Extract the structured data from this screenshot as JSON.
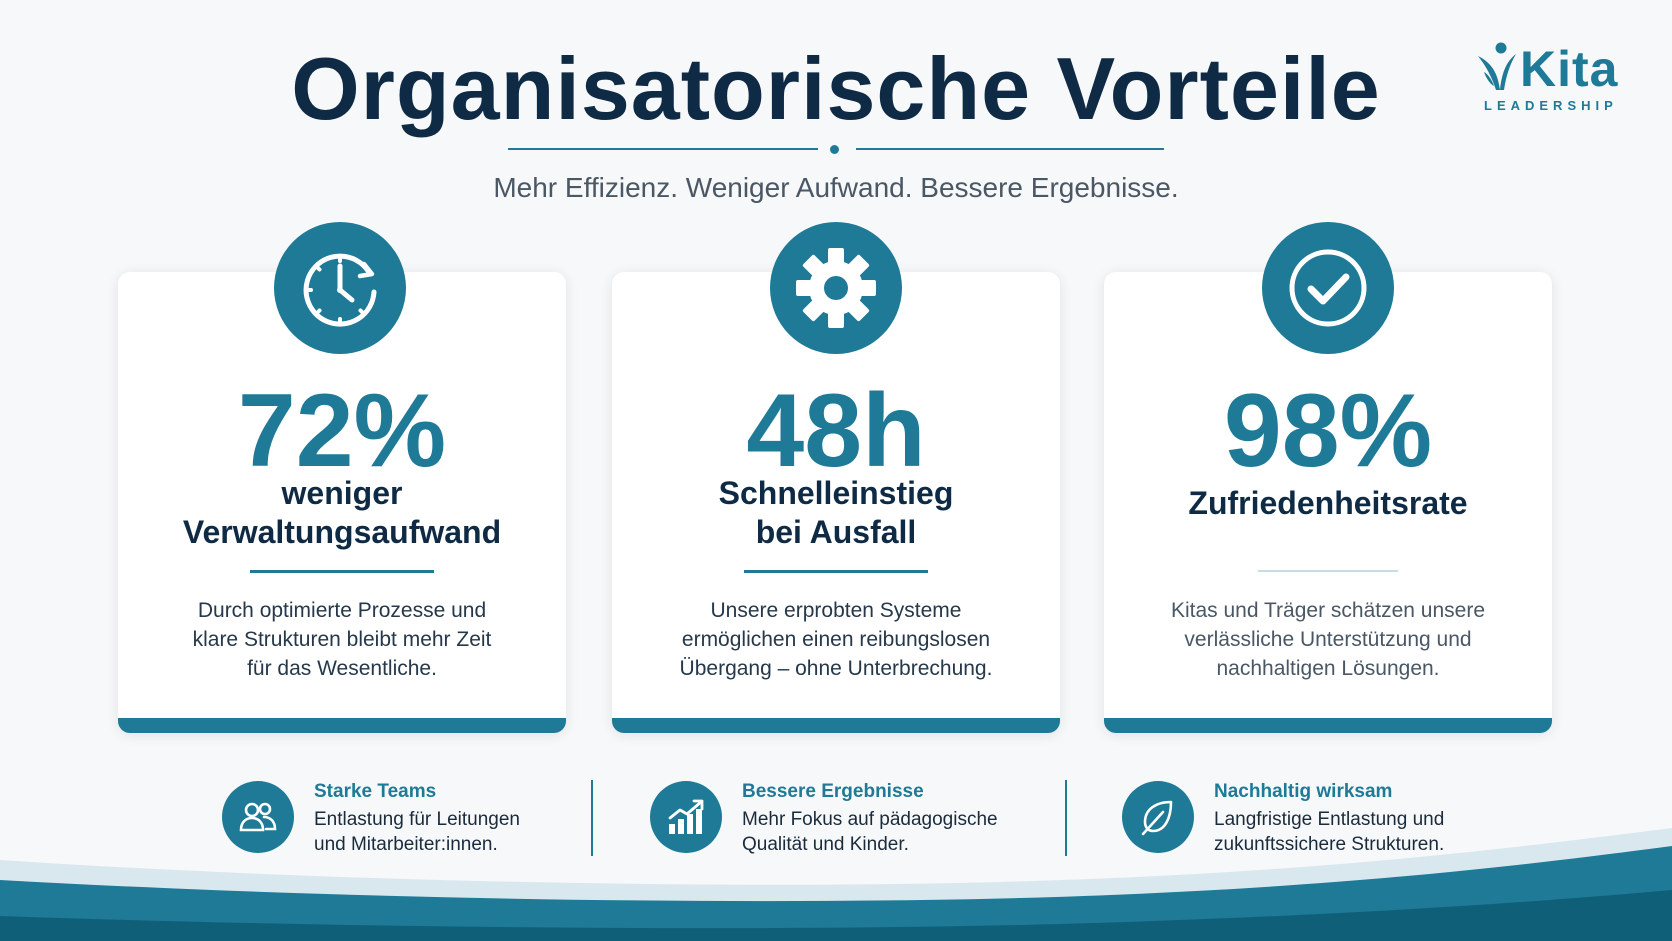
{
  "header": {
    "title": "Organisatorische Vorteile",
    "subtitle": "Mehr Effizienz. Weniger Aufwand. Bessere Ergebnisse."
  },
  "logo": {
    "name": "Kita",
    "tagline": "LEADERSHIP"
  },
  "cards": [
    {
      "icon": "clock-icon",
      "stat": "72%",
      "label_lines": [
        "weniger",
        "Verwaltungsaufwand"
      ],
      "description_lines": [
        "Durch optimierte Prozesse und",
        "klare Strukturen bleibt mehr Zeit",
        "für das Wesentliche."
      ]
    },
    {
      "icon": "gear-icon",
      "stat": "48h",
      "label_lines": [
        "Schnelleinstieg",
        "bei Ausfall"
      ],
      "description_lines": [
        "Unsere erprobten Systeme",
        "ermöglichen einen reibungslosen",
        "Übergang – ohne Unterbrechung."
      ]
    },
    {
      "icon": "checkmark-icon",
      "stat": "98%",
      "label_lines": [
        "Zufriedenheitsrate"
      ],
      "description_lines": [
        "Kitas und Träger schätzen unsere",
        "verlässliche Unterstützung und",
        "nachhaltigen Lösungen."
      ]
    }
  ],
  "features": [
    {
      "icon": "people-icon",
      "title": "Starke Teams",
      "text_lines": [
        "Entlastung für Leitungen",
        "und Mitarbeiter:innen."
      ]
    },
    {
      "icon": "growth-chart-icon",
      "title": "Bessere Ergebnisse",
      "text_lines": [
        "Mehr Fokus auf pädagogische",
        "Qualität und Kinder."
      ]
    },
    {
      "icon": "leaf-icon",
      "title": "Nachhaltig wirksam",
      "text_lines": [
        "Langfristige Entlastung und",
        "zukunftssichere Strukturen."
      ]
    }
  ],
  "colors": {
    "accent": "#1e7a97",
    "heading": "#0f2a44",
    "background": "#f7f8f9"
  }
}
